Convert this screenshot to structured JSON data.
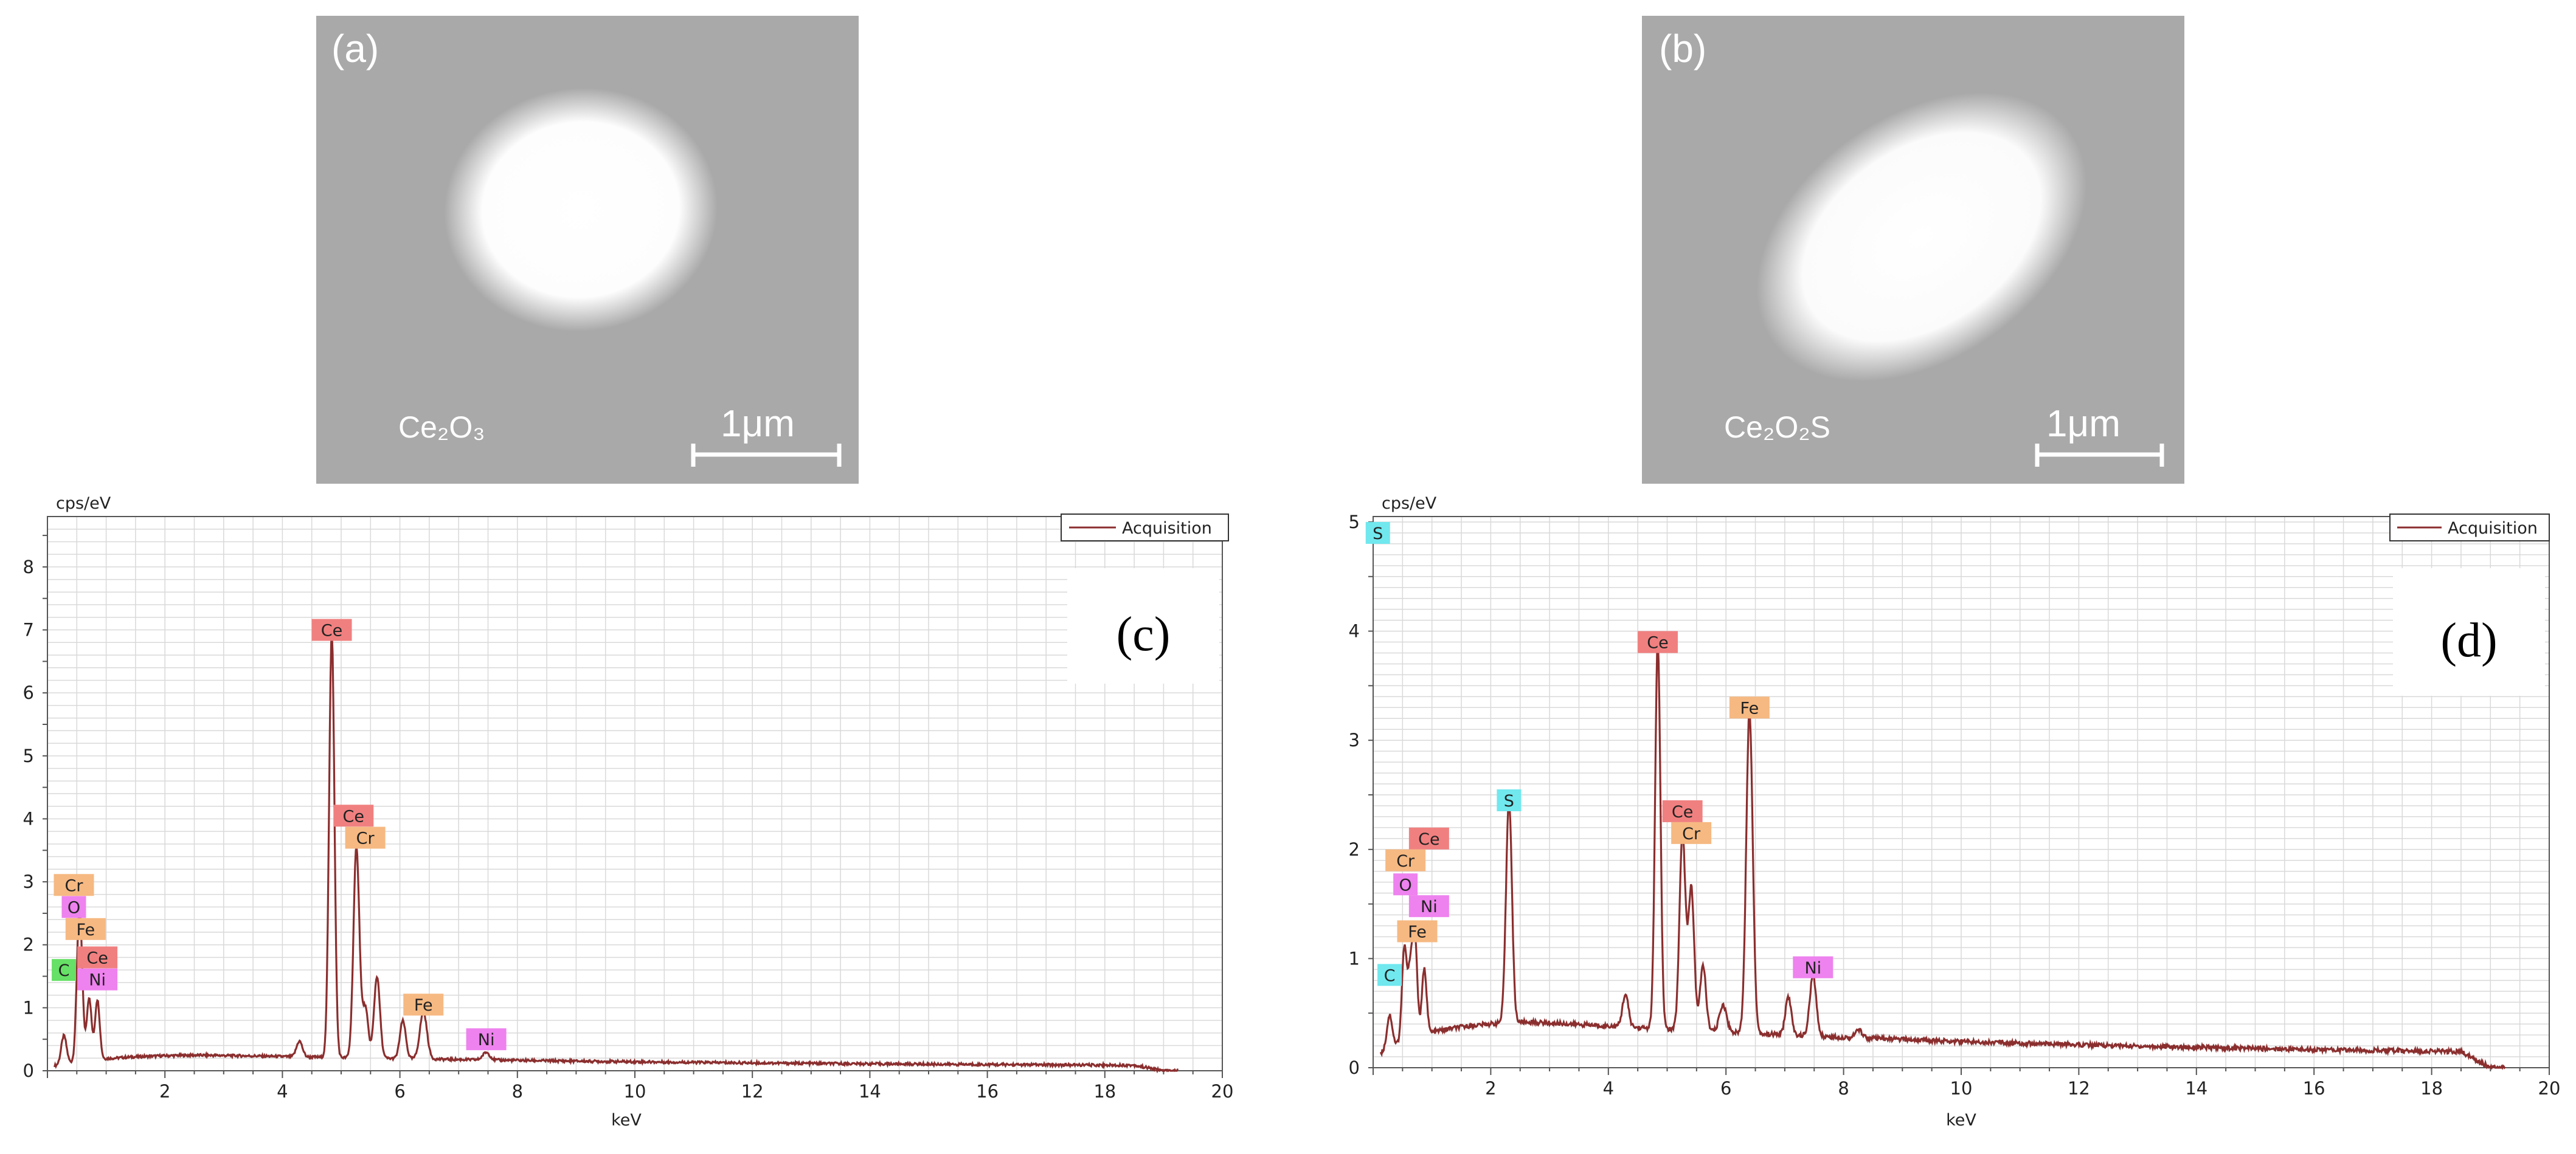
{
  "colors": {
    "sem_background": "#a9a9a9",
    "spectrum_line": "#8b2e2e",
    "grid_line": "#d9d9d9",
    "label_Ce": "#f08080",
    "label_Cr": "#f6b982",
    "label_Fe": "#f6b982",
    "label_O": "#ee82ee",
    "label_Ni": "#ee82ee",
    "label_C": "#66e066",
    "label_S": "#70e8ee",
    "label_C_d": "#70e8ee"
  },
  "sem_images": [
    {
      "panel": "(a)",
      "phase": "Ce₂O₃",
      "scale_bar": "1μm"
    },
    {
      "panel": "(b)",
      "phase": "Ce₂O₂S",
      "scale_bar": "1μm"
    }
  ],
  "chart_data": [
    {
      "type": "line",
      "panel": "(c)",
      "ylabel": "cps/eV",
      "xlabel": "keV",
      "xlim": [
        0,
        20
      ],
      "ylim": [
        0,
        8.8
      ],
      "x_ticks": [
        2,
        4,
        6,
        8,
        10,
        12,
        14,
        16,
        18,
        20
      ],
      "y_ticks": [
        0,
        1,
        2,
        3,
        4,
        5,
        6,
        7,
        8
      ],
      "legend": "Acquisition",
      "legend_position": "top-right",
      "background": 0.13,
      "peaks": [
        {
          "x": 0.28,
          "y": 0.45,
          "w": 0.045
        },
        {
          "x": 0.53,
          "y": 1.55,
          "w": 0.04
        },
        {
          "x": 0.57,
          "y": 1.2,
          "w": 0.04
        },
        {
          "x": 0.71,
          "y": 1.0,
          "w": 0.04
        },
        {
          "x": 0.85,
          "y": 0.95,
          "w": 0.04
        },
        {
          "x": 4.29,
          "y": 0.25,
          "w": 0.05
        },
        {
          "x": 4.84,
          "y": 6.75,
          "w": 0.045
        },
        {
          "x": 5.26,
          "y": 3.35,
          "w": 0.05
        },
        {
          "x": 5.41,
          "y": 0.8,
          "w": 0.05
        },
        {
          "x": 5.61,
          "y": 1.3,
          "w": 0.05
        },
        {
          "x": 6.05,
          "y": 0.6,
          "w": 0.05
        },
        {
          "x": 6.4,
          "y": 0.75,
          "w": 0.06
        },
        {
          "x": 7.47,
          "y": 0.12,
          "w": 0.06
        }
      ],
      "element_labels": [
        {
          "text": "Ce",
          "x": 4.84,
          "y": 7.0,
          "color": "label_Ce"
        },
        {
          "text": "Ce",
          "x": 5.21,
          "y": 4.05,
          "color": "label_Ce"
        },
        {
          "text": "Cr",
          "x": 5.41,
          "y": 3.7,
          "color": "label_Cr"
        },
        {
          "text": "Fe",
          "x": 6.4,
          "y": 1.05,
          "color": "label_Fe"
        },
        {
          "text": "Ni",
          "x": 7.47,
          "y": 0.5,
          "color": "label_Ni"
        },
        {
          "text": "Cr",
          "x": 0.45,
          "y": 2.95,
          "color": "label_Cr"
        },
        {
          "text": "O",
          "x": 0.45,
          "y": 2.6,
          "color": "label_O"
        },
        {
          "text": "Fe",
          "x": 0.65,
          "y": 2.25,
          "color": "label_Fe"
        },
        {
          "text": "Ce",
          "x": 0.85,
          "y": 1.8,
          "color": "label_Ce"
        },
        {
          "text": "C",
          "x": 0.28,
          "y": 1.6,
          "color": "label_C"
        },
        {
          "text": "Ni",
          "x": 0.85,
          "y": 1.45,
          "color": "label_Ni"
        }
      ]
    },
    {
      "type": "line",
      "panel": "(d)",
      "ylabel": "cps/eV",
      "xlabel": "keV",
      "xlim": [
        0,
        20
      ],
      "ylim": [
        0,
        5.05
      ],
      "x_ticks": [
        2,
        4,
        6,
        8,
        10,
        12,
        14,
        16,
        18,
        20
      ],
      "y_ticks": [
        0,
        1,
        2,
        3,
        4,
        5
      ],
      "legend": "Acquisition",
      "legend_position": "top-right",
      "background": 0.22,
      "peaks": [
        {
          "x": 0.28,
          "y": 0.3,
          "w": 0.045
        },
        {
          "x": 0.53,
          "y": 0.85,
          "w": 0.04
        },
        {
          "x": 0.63,
          "y": 0.6,
          "w": 0.04
        },
        {
          "x": 0.71,
          "y": 0.9,
          "w": 0.04
        },
        {
          "x": 0.87,
          "y": 0.6,
          "w": 0.04
        },
        {
          "x": 2.31,
          "y": 2.05,
          "w": 0.05
        },
        {
          "x": 4.29,
          "y": 0.3,
          "w": 0.05
        },
        {
          "x": 4.84,
          "y": 3.55,
          "w": 0.045
        },
        {
          "x": 5.26,
          "y": 1.8,
          "w": 0.05
        },
        {
          "x": 5.41,
          "y": 1.3,
          "w": 0.05
        },
        {
          "x": 5.61,
          "y": 0.6,
          "w": 0.05
        },
        {
          "x": 5.95,
          "y": 0.25,
          "w": 0.06
        },
        {
          "x": 6.4,
          "y": 2.95,
          "w": 0.055
        },
        {
          "x": 7.06,
          "y": 0.35,
          "w": 0.05
        },
        {
          "x": 7.48,
          "y": 0.55,
          "w": 0.055
        },
        {
          "x": 8.26,
          "y": 0.07,
          "w": 0.06
        }
      ],
      "element_labels": [
        {
          "text": "S",
          "x": 0.08,
          "y": 4.9,
          "color": "label_S"
        },
        {
          "text": "Ce",
          "x": 4.84,
          "y": 3.9,
          "color": "label_Ce"
        },
        {
          "text": "Fe",
          "x": 6.4,
          "y": 3.3,
          "color": "label_Fe"
        },
        {
          "text": "S",
          "x": 2.31,
          "y": 2.45,
          "color": "label_S"
        },
        {
          "text": "Ce",
          "x": 5.26,
          "y": 2.35,
          "color": "label_Ce"
        },
        {
          "text": "Cr",
          "x": 5.41,
          "y": 2.15,
          "color": "label_Cr"
        },
        {
          "text": "Ce",
          "x": 0.95,
          "y": 2.1,
          "color": "label_Ce"
        },
        {
          "text": "Cr",
          "x": 0.55,
          "y": 1.9,
          "color": "label_Cr"
        },
        {
          "text": "O",
          "x": 0.55,
          "y": 1.68,
          "color": "label_O"
        },
        {
          "text": "Ni",
          "x": 0.95,
          "y": 1.48,
          "color": "label_Ni"
        },
        {
          "text": "Fe",
          "x": 0.75,
          "y": 1.25,
          "color": "label_Fe"
        },
        {
          "text": "Ni",
          "x": 7.48,
          "y": 0.92,
          "color": "label_Ni"
        },
        {
          "text": "C",
          "x": 0.28,
          "y": 0.85,
          "color": "label_C_d"
        }
      ]
    }
  ]
}
